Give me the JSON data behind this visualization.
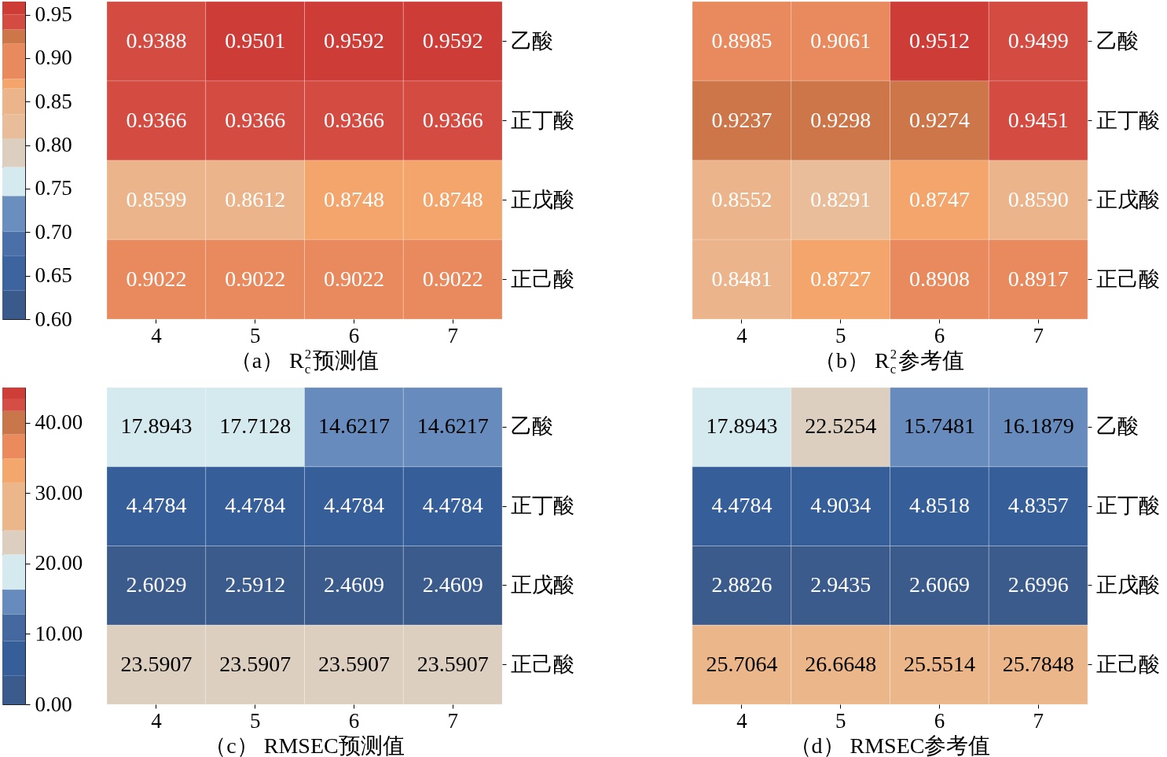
{
  "chart_data": [
    {
      "type": "heatmap",
      "title": "（a） R$_{c}$$^{2}$预测值",
      "categories": [
        "4",
        "5",
        "6",
        "7"
      ],
      "y_categories": [
        "乙酸",
        "正丁酸",
        "正戊酸",
        "正己酸"
      ],
      "cells": [
        [
          0.9388,
          0.9501,
          0.9592,
          0.9592
        ],
        [
          0.9366,
          0.9366,
          0.9366,
          0.9366
        ],
        [
          0.8599,
          0.8612,
          0.8748,
          0.8748
        ],
        [
          0.9022,
          0.9022,
          0.9022,
          0.9022
        ]
      ],
      "cell_labels": [
        [
          "0.9388",
          "0.9501",
          "0.9592",
          "0.9592"
        ],
        [
          "0.9366",
          "0.9366",
          "0.9366",
          "0.9366"
        ],
        [
          "0.8599",
          "0.8612",
          "0.8748",
          "0.8748"
        ],
        [
          "0.9022",
          "0.9022",
          "0.9022",
          "0.9022"
        ]
      ],
      "clim": [
        0.6,
        0.965
      ],
      "cticks": [
        {
          "value": 0.6,
          "label": "0.60"
        },
        0.65,
        {
          "value": 0.7,
          "label": "0.70"
        },
        0.75,
        {
          "value": 0.8,
          "label": "0.80"
        },
        0.85,
        {
          "value": 0.9,
          "label": "0.90"
        },
        0.95
      ]
    },
    {
      "type": "heatmap",
      "title": "（b） R$_{c}$$^{2}$参考值",
      "categories": [
        "4",
        "5",
        "6",
        "7"
      ],
      "y_categories": [
        "乙酸",
        "正丁酸",
        "正戊酸",
        "正己酸"
      ],
      "cells": [
        [
          0.8985,
          0.9061,
          0.9512,
          0.9499
        ],
        [
          0.9237,
          0.9298,
          0.9274,
          0.9451
        ],
        [
          0.8552,
          0.8291,
          0.8747,
          0.859
        ],
        [
          0.8481,
          0.8727,
          0.8908,
          0.8917
        ]
      ],
      "cell_labels": [
        [
          "0.8985",
          "0.9061",
          "0.9512",
          "0.9499"
        ],
        [
          "0.9237",
          "0.9298",
          "0.9274",
          "0.9451"
        ],
        [
          "0.8552",
          "0.8291",
          "0.8747",
          "0.8590"
        ],
        [
          "0.8481",
          "0.8727",
          "0.8908",
          "0.8917"
        ]
      ]
    },
    {
      "type": "heatmap",
      "title": "（c） RMSEC预测值",
      "categories": [
        "4",
        "5",
        "6",
        "7"
      ],
      "y_categories": [
        "乙酸",
        "正丁酸",
        "正戊酸",
        "正己酸"
      ],
      "cells": [
        [
          17.8943,
          17.7128,
          14.6217,
          14.6217
        ],
        [
          4.4784,
          4.4784,
          4.4784,
          4.4784
        ],
        [
          2.6029,
          2.5912,
          2.4609,
          2.4609
        ],
        [
          23.5907,
          23.5907,
          23.5907,
          23.5907
        ]
      ],
      "cell_labels": [
        [
          "17.8943",
          "17.7128",
          "14.6217",
          "14.6217"
        ],
        [
          "4.4784",
          "4.4784",
          "4.4784",
          "4.4784"
        ],
        [
          "2.6029",
          "2.5912",
          "2.4609",
          "2.4609"
        ],
        [
          "23.5907",
          "23.5907",
          "23.5907",
          "23.5907"
        ]
      ],
      "clim": [
        0,
        45
      ],
      "cticks": [
        {
          "value": 0,
          "label": "0.00"
        },
        {
          "value": 10,
          "label": "10.00"
        },
        {
          "value": 20,
          "label": "20.00"
        },
        {
          "value": 30,
          "label": "30.00"
        },
        {
          "value": 40,
          "label": "40.00"
        }
      ]
    },
    {
      "type": "heatmap",
      "title": "（d） RMSEC参考值",
      "categories": [
        "4",
        "5",
        "6",
        "7"
      ],
      "y_categories": [
        "乙酸",
        "正丁酸",
        "正戊酸",
        "正己酸"
      ],
      "cells": [
        [
          17.8943,
          22.5254,
          15.7481,
          16.1879
        ],
        [
          4.4784,
          4.9034,
          4.8518,
          4.8357
        ],
        [
          2.8826,
          2.9435,
          2.6069,
          2.6996
        ],
        [
          25.7064,
          26.6648,
          25.5514,
          25.7848
        ]
      ],
      "cell_labels": [
        [
          "17.8943",
          "22.5254",
          "15.7481",
          "16.1879"
        ],
        [
          "4.4784",
          "4.9034",
          "4.8518",
          "4.8357"
        ],
        [
          "2.8826",
          "2.9435",
          "2.6069",
          "2.6996"
        ],
        [
          "25.7064",
          "26.6648",
          "25.5514",
          "25.7848"
        ]
      ]
    }
  ]
}
